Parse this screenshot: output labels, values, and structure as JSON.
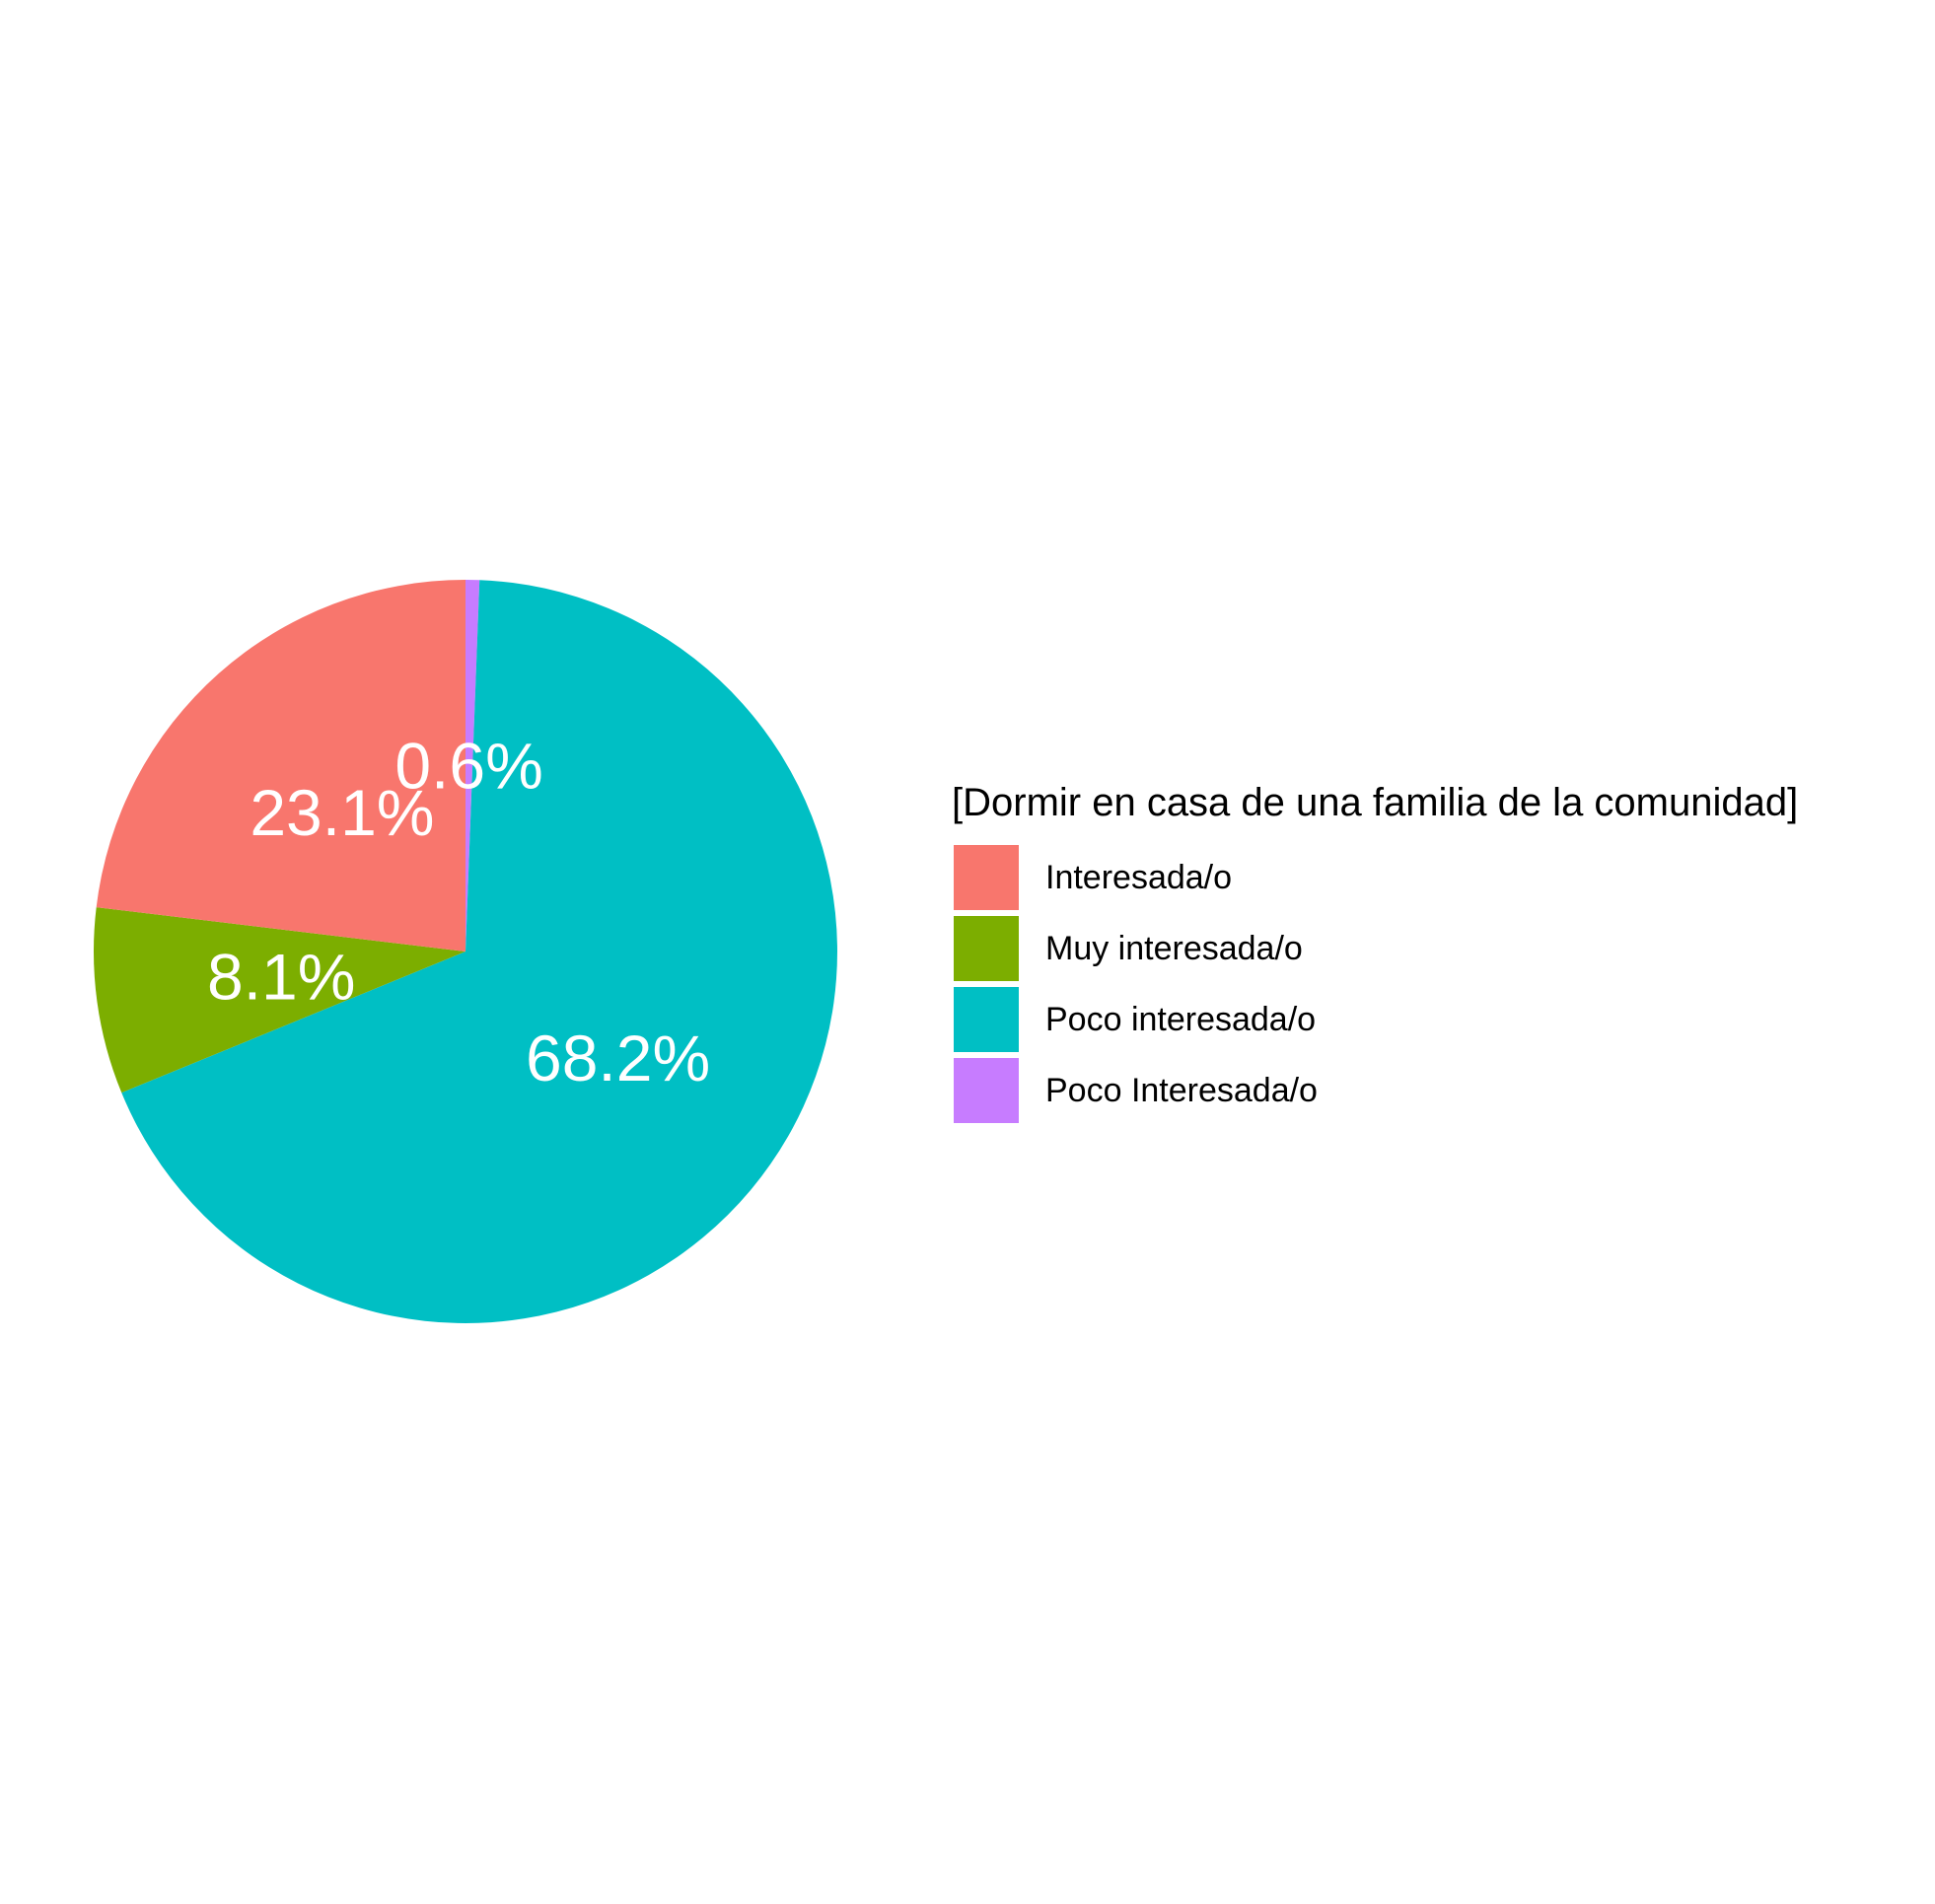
{
  "chart_data": {
    "type": "pie",
    "title": "",
    "legend": {
      "title": "[Dormir en casa de una familia de la comunidad]",
      "position": "right"
    },
    "start": "top",
    "direction": "clockwise",
    "slices": [
      {
        "name": "Poco Interesada/o",
        "value": 0.6,
        "label": "0.6%",
        "color": "#C77CFF"
      },
      {
        "name": "Poco interesada/o",
        "value": 68.2,
        "label": "68.2%",
        "color": "#00BFC4"
      },
      {
        "name": "Muy interesada/o",
        "value": 8.1,
        "label": "8.1%",
        "color": "#7CAE00"
      },
      {
        "name": "Interesada/o",
        "value": 23.1,
        "label": "23.1%",
        "color": "#F8766D"
      }
    ],
    "legend_order": [
      "Interesada/o",
      "Muy interesada/o",
      "Poco interesada/o",
      "Poco Interesada/o"
    ]
  }
}
